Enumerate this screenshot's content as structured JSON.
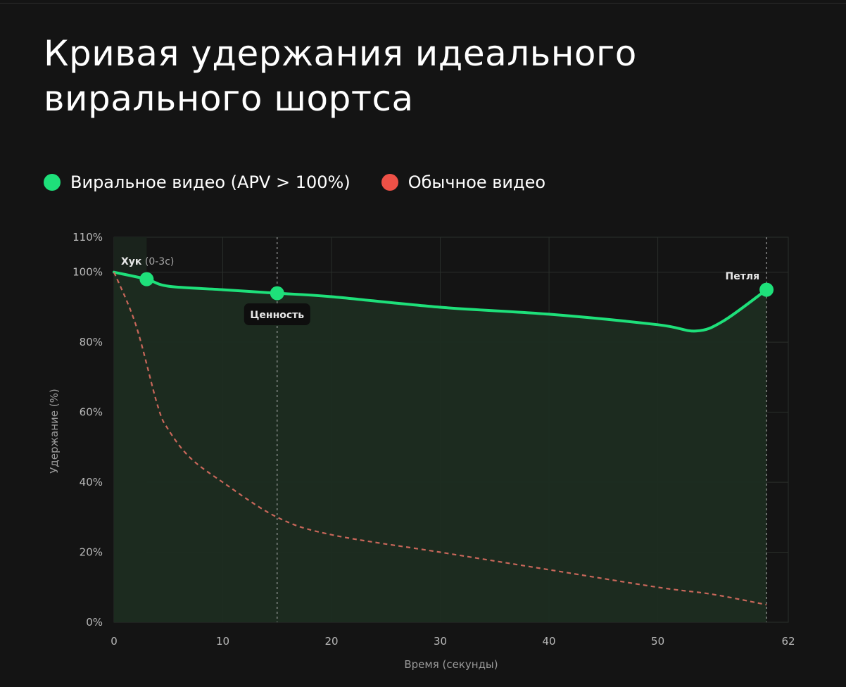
{
  "chart_title": "Кривая удержания идеального вирального шортса",
  "legend": [
    {
      "label": "Виральное видео (APV > 100%)",
      "color": "#1ee07a"
    },
    {
      "label": "Обычное видео",
      "color": "#ee5147"
    }
  ],
  "colors": {
    "background": "#141414",
    "viral_line": "#1ee07a",
    "viral_fill": "#1c2c20",
    "normal_line": "#c9675a",
    "grid": "#2a2f2b"
  },
  "chart_data": {
    "type": "line",
    "title": "Кривая удержания идеального вирального шортса",
    "xlabel": "Время (секунды)",
    "ylabel": "Удержание (%)",
    "xlim": [
      0,
      62
    ],
    "ylim": [
      0,
      110
    ],
    "x_ticks": [
      0,
      10,
      20,
      30,
      40,
      50,
      62
    ],
    "y_ticks": [
      0,
      20,
      40,
      60,
      80,
      100,
      110
    ],
    "y_tick_suffix": "%",
    "grid": true,
    "legend_position": "top-left",
    "series": [
      {
        "name": "Виральное видео (APV > 100%)",
        "style": "solid",
        "filled": true,
        "points": [
          [
            0,
            100
          ],
          [
            3,
            98
          ],
          [
            5,
            96
          ],
          [
            10,
            95
          ],
          [
            15,
            94
          ],
          [
            20,
            93
          ],
          [
            30,
            90
          ],
          [
            40,
            88
          ],
          [
            50,
            85
          ],
          [
            53.5,
            83.2
          ],
          [
            56,
            86
          ],
          [
            60,
            95
          ]
        ]
      },
      {
        "name": "Обычное видео",
        "style": "dashed",
        "filled": false,
        "points": [
          [
            0,
            100
          ],
          [
            2,
            85
          ],
          [
            4,
            62
          ],
          [
            5,
            55
          ],
          [
            7,
            47
          ],
          [
            10,
            40
          ],
          [
            15,
            30
          ],
          [
            20,
            25
          ],
          [
            30,
            20
          ],
          [
            40,
            15
          ],
          [
            50,
            10
          ],
          [
            55,
            8
          ],
          [
            60,
            5
          ]
        ]
      }
    ],
    "vertical_markers": [
      15,
      60
    ],
    "annotations": [
      {
        "name": "hook",
        "x": 3,
        "y": 98,
        "text": "Хук",
        "suffix": " (0-3с)"
      },
      {
        "name": "value",
        "x": 15,
        "y": 94,
        "text": "Ценность"
      },
      {
        "name": "loop",
        "x": 60,
        "y": 95,
        "text": "Петля"
      }
    ],
    "hook_region": [
      0,
      3
    ]
  }
}
